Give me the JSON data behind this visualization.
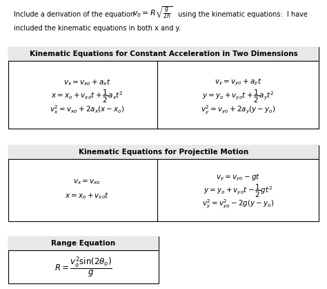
{
  "figsize": [
    4.74,
    4.18
  ],
  "dpi": 100,
  "bg_color": "#ffffff",
  "header_text1": "Include a derivation of the equation",
  "header_eq": "$v_o = R\\sqrt{\\frac{g}{2h}}$",
  "header_text2": "using the kinematic equations:  I have",
  "header_text3": "included the kinematic equations in both x and y.",
  "box1_title": "Kinematic Equations for Constant Acceleration in Two Dimensions",
  "box1_left": [
    "$v_x = v_{xo} + a_x t$",
    "$x = x_o + v_{xo}t + \\dfrac{1}{2}a_x t^2$",
    "$v_x^2 = v_{xo} + 2a_x(x - x_o)$"
  ],
  "box1_right": [
    "$v_y = v_{yo} + a_y t$",
    "$y = y_o + v_{yo}t + \\dfrac{1}{2}a_y t^2$",
    "$v_y^2 = v_{yo} + 2a_y(y - y_o)$"
  ],
  "box2_title": "Kinematic Equations for Projectile Motion",
  "box2_left": [
    "$v_x = v_{xo}$",
    "$x = x_o + v_{xo}t$"
  ],
  "box2_right": [
    "$v_y = v_{yo} - gt$",
    "$y = y_o + v_{yo}t - \\dfrac{1}{2}gt^2$",
    "$v_y^2 = v_{yo}^2 - 2g(y - y_o)$"
  ],
  "box3_title": "Range Equation",
  "box3_eq": "$R = \\dfrac{v_o^2 \\mathrm{sin}(2\\theta_o)}{g}$",
  "fs_header": 7.0,
  "fs_title": 7.5,
  "fs_eq": 7.5,
  "fs_header_eq": 8.0
}
